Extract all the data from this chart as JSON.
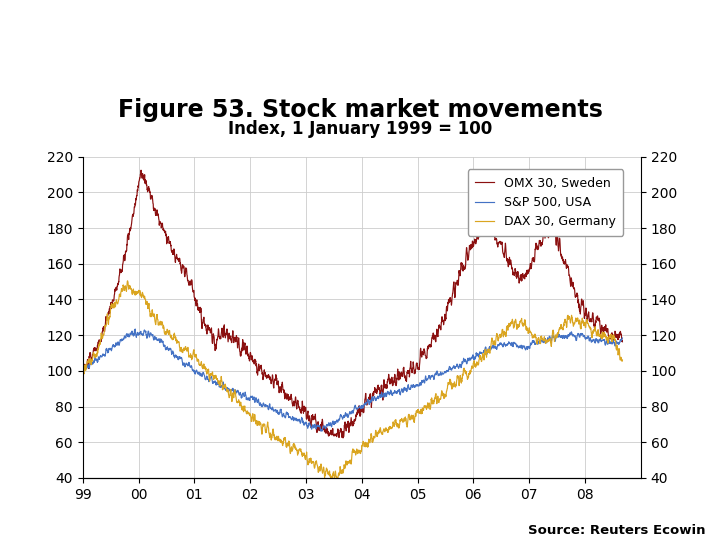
{
  "title": "Figure 53. Stock market movements",
  "subtitle": "Index, 1 January 1999 = 100",
  "source": "Source: Reuters Ecowin",
  "ylim": [
    40,
    220
  ],
  "yticks": [
    40,
    60,
    80,
    100,
    120,
    140,
    160,
    180,
    200,
    220
  ],
  "colors": {
    "omx": "#8B1010",
    "sp500": "#4472C4",
    "dax": "#DAA520"
  },
  "legend_labels": [
    "OMX 30, Sweden",
    "S&P 500, USA",
    "DAX 30, Germany"
  ],
  "background_color": "#FFFFFF",
  "grid_color": "#CCCCCC",
  "footer_bar_color": "#1A3A7A",
  "title_fontsize": 17,
  "subtitle_fontsize": 12,
  "xtick_vals": [
    1999,
    2000,
    2001,
    2002,
    2003,
    2004,
    2005,
    2006,
    2007,
    2008
  ],
  "xtick_labels": [
    "99",
    "00",
    "01",
    "02",
    "03",
    "04",
    "05",
    "06",
    "07",
    "08"
  ]
}
